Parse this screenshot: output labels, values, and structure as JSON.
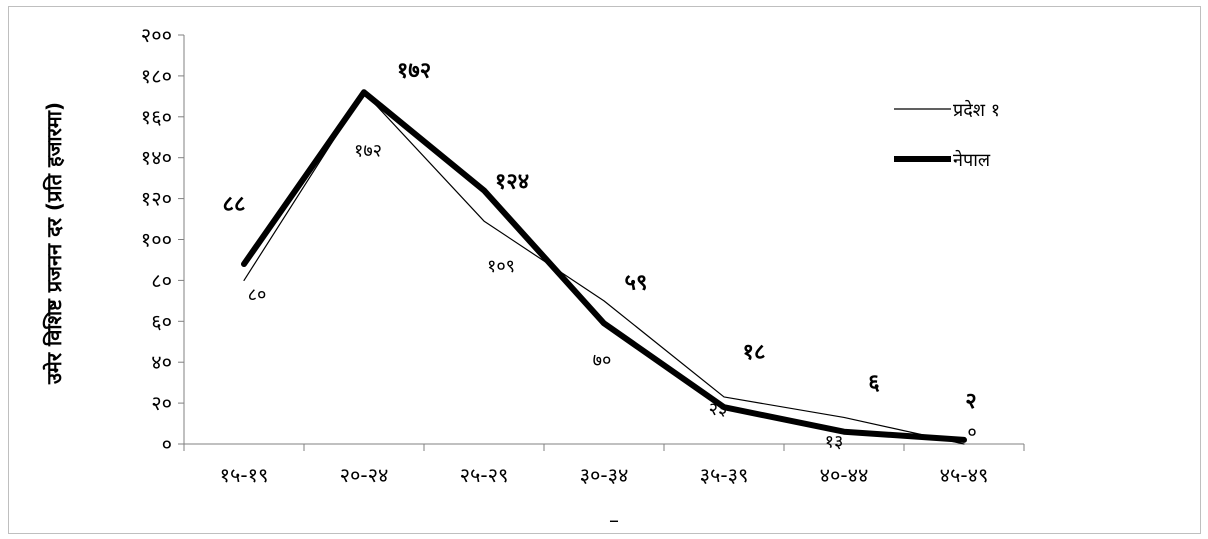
{
  "chart_data": {
    "type": "line",
    "title": "",
    "xlabel": "–",
    "ylabel": "उमेर विशिष्ट प्रजनन दर (प्रति हजारमा)",
    "categories": [
      "१५-१९",
      "२०-२४",
      "२५-२९",
      "३०-३४",
      "३५-३९",
      "४०-४४",
      "४५-४९"
    ],
    "ylim": [
      0,
      200
    ],
    "yticks": [
      "०",
      "२०",
      "४०",
      "६०",
      "८०",
      "१००",
      "१२०",
      "१४०",
      "१६०",
      "१८०",
      "२००"
    ],
    "grid": false,
    "legend_position": "top-right",
    "series": [
      {
        "name": "प्रदेश १",
        "values": [
          80,
          172,
          109,
          70,
          23,
          13,
          0
        ],
        "labels": [
          "८०",
          "१७२",
          "१०९",
          "७०",
          "२३",
          "१३",
          "०"
        ],
        "style": "thin",
        "color": "#000000"
      },
      {
        "name": "नेपाल",
        "values": [
          88,
          172,
          124,
          59,
          18,
          6,
          2
        ],
        "labels": [
          "८८",
          "१७२",
          "१२४",
          "५९",
          "१८",
          "६",
          "२"
        ],
        "style": "thick",
        "color": "#000000"
      }
    ]
  }
}
